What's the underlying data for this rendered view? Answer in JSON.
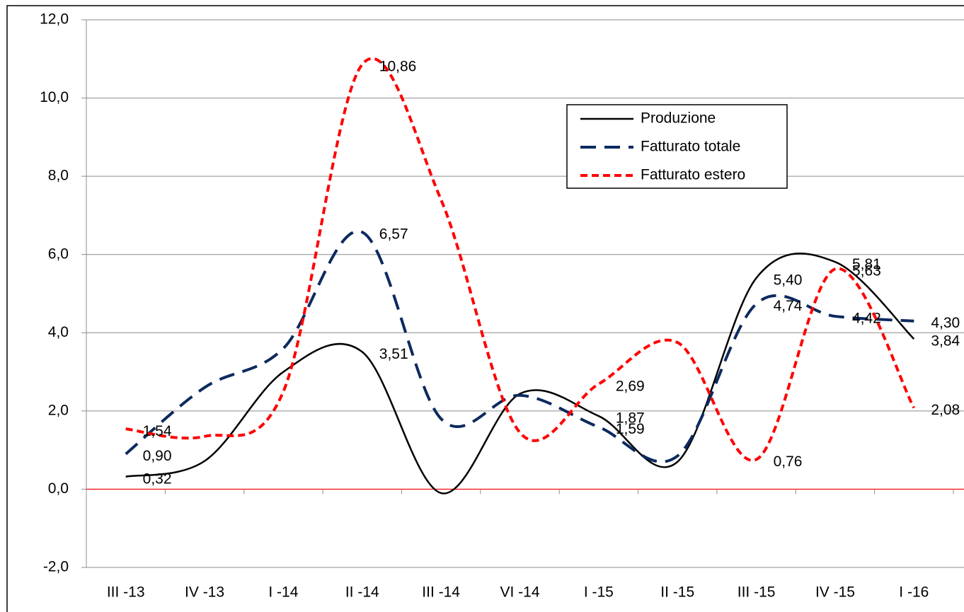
{
  "chart_data": {
    "type": "line",
    "categories": [
      "III -13",
      "IV -13",
      "I -14",
      "II -14",
      "III -14",
      "VI -14",
      "I -15",
      "II -15",
      "III -15",
      "IV -15",
      "I -16"
    ],
    "series": [
      {
        "name": "Produzione",
        "color": "#000000",
        "values": [
          0.32,
          0.72,
          3.0,
          3.51,
          -0.1,
          2.44,
          1.87,
          0.7,
          5.4,
          5.81,
          3.84
        ],
        "value_labels": [
          "0,32",
          null,
          null,
          "3,51",
          null,
          null,
          "1,87",
          null,
          "5,40",
          "5,81",
          "3,84"
        ]
      },
      {
        "name": "Fatturato totale",
        "color": "#0d2a5e",
        "values": [
          0.9,
          2.6,
          3.6,
          6.57,
          1.8,
          2.4,
          1.59,
          0.85,
          4.74,
          4.42,
          4.3
        ],
        "value_labels": [
          "0,90",
          null,
          null,
          "6,57",
          null,
          null,
          "1,59",
          null,
          "4,74",
          "4,42",
          "4,30"
        ]
      },
      {
        "name": "Fatturato estero",
        "color": "#ff0000",
        "values": [
          1.54,
          1.35,
          2.5,
          10.86,
          7.4,
          1.45,
          2.69,
          3.75,
          0.76,
          5.63,
          2.08
        ],
        "value_labels": [
          "1,54",
          null,
          null,
          "10,86",
          null,
          null,
          "2,69",
          null,
          "0,76",
          "5,63",
          "2,08"
        ]
      }
    ],
    "ylim": [
      -2,
      12
    ],
    "yticks": [
      {
        "value": -2,
        "label": "-2,0"
      },
      {
        "value": 0,
        "label": "0,0"
      },
      {
        "value": 2,
        "label": "2,0"
      },
      {
        "value": 4,
        "label": "4,0"
      },
      {
        "value": 6,
        "label": "6,0"
      },
      {
        "value": 8,
        "label": "8,0"
      },
      {
        "value": 10,
        "label": "10,0"
      },
      {
        "value": 12,
        "label": "12,0"
      }
    ],
    "grid": true
  }
}
